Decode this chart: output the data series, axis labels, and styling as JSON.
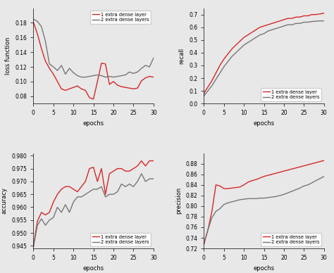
{
  "red_color": "#d62728",
  "gray_color": "#777777",
  "background": "#e8e8e8",
  "legend1_label": "1 extra dense layer",
  "legend2_label": "2 extra dense layers",
  "epochs": [
    0,
    1,
    2,
    3,
    4,
    5,
    6,
    7,
    8,
    9,
    10,
    11,
    12,
    13,
    14,
    15,
    16,
    17,
    18,
    19,
    20,
    21,
    22,
    23,
    24,
    25,
    26,
    27,
    28,
    29,
    30
  ],
  "loss_red": [
    0.181,
    0.165,
    0.145,
    0.128,
    0.118,
    0.11,
    0.1,
    0.09,
    0.088,
    0.09,
    0.092,
    0.094,
    0.09,
    0.088,
    0.078,
    0.076,
    0.1,
    0.125,
    0.124,
    0.096,
    0.1,
    0.095,
    0.093,
    0.092,
    0.091,
    0.09,
    0.091,
    0.101,
    0.105,
    0.107,
    0.106
  ],
  "loss_gray": [
    0.185,
    0.182,
    0.175,
    0.155,
    0.124,
    0.12,
    0.115,
    0.122,
    0.11,
    0.118,
    0.112,
    0.108,
    0.106,
    0.106,
    0.107,
    0.108,
    0.109,
    0.108,
    0.106,
    0.107,
    0.106,
    0.107,
    0.108,
    0.109,
    0.113,
    0.111,
    0.113,
    0.118,
    0.122,
    0.12,
    0.132
  ],
  "recall_red": [
    0.08,
    0.13,
    0.18,
    0.24,
    0.3,
    0.35,
    0.39,
    0.43,
    0.46,
    0.49,
    0.52,
    0.54,
    0.56,
    0.58,
    0.6,
    0.61,
    0.62,
    0.63,
    0.64,
    0.65,
    0.66,
    0.67,
    0.67,
    0.68,
    0.68,
    0.69,
    0.69,
    0.7,
    0.7,
    0.705,
    0.71
  ],
  "recall_gray": [
    0.06,
    0.1,
    0.14,
    0.19,
    0.24,
    0.29,
    0.33,
    0.37,
    0.4,
    0.43,
    0.46,
    0.48,
    0.5,
    0.52,
    0.54,
    0.55,
    0.57,
    0.58,
    0.59,
    0.6,
    0.61,
    0.62,
    0.62,
    0.63,
    0.63,
    0.64,
    0.64,
    0.645,
    0.648,
    0.65,
    0.65
  ],
  "acc_red": [
    0.945,
    0.9545,
    0.958,
    0.957,
    0.958,
    0.962,
    0.965,
    0.967,
    0.968,
    0.968,
    0.967,
    0.966,
    0.968,
    0.97,
    0.975,
    0.9755,
    0.97,
    0.975,
    0.965,
    0.973,
    0.974,
    0.975,
    0.975,
    0.974,
    0.974,
    0.975,
    0.976,
    0.978,
    0.976,
    0.978,
    0.978
  ],
  "acc_gray": [
    0.9445,
    0.953,
    0.9555,
    0.953,
    0.955,
    0.956,
    0.96,
    0.958,
    0.961,
    0.958,
    0.962,
    0.964,
    0.964,
    0.965,
    0.966,
    0.967,
    0.967,
    0.968,
    0.964,
    0.965,
    0.965,
    0.966,
    0.969,
    0.968,
    0.969,
    0.968,
    0.97,
    0.973,
    0.97,
    0.971,
    0.971
  ],
  "prec_red": [
    0.728,
    0.755,
    0.79,
    0.84,
    0.838,
    0.833,
    0.833,
    0.834,
    0.835,
    0.836,
    0.84,
    0.845,
    0.848,
    0.85,
    0.853,
    0.856,
    0.858,
    0.86,
    0.862,
    0.864,
    0.866,
    0.868,
    0.87,
    0.872,
    0.874,
    0.876,
    0.878,
    0.88,
    0.882,
    0.884,
    0.886
  ],
  "prec_gray": [
    0.73,
    0.755,
    0.778,
    0.79,
    0.795,
    0.803,
    0.806,
    0.808,
    0.81,
    0.812,
    0.813,
    0.814,
    0.814,
    0.814,
    0.815,
    0.815,
    0.816,
    0.817,
    0.818,
    0.82,
    0.822,
    0.825,
    0.828,
    0.831,
    0.834,
    0.838,
    0.84,
    0.844,
    0.848,
    0.852,
    0.856
  ],
  "loss_ylim": [
    0.07,
    0.2
  ],
  "recall_ylim": [
    0.0,
    0.75
  ],
  "acc_ylim": [
    0.944,
    0.981
  ],
  "prec_ylim": [
    0.72,
    0.9
  ],
  "loss_yticks": [
    0.08,
    0.1,
    0.12,
    0.14,
    0.16,
    0.18
  ],
  "recall_yticks": [
    0.0,
    0.1,
    0.2,
    0.3,
    0.4,
    0.5,
    0.6,
    0.7
  ],
  "acc_yticks": [
    0.945,
    0.95,
    0.955,
    0.96,
    0.965,
    0.97,
    0.975,
    0.98
  ],
  "prec_yticks": [
    0.72,
    0.74,
    0.76,
    0.78,
    0.8,
    0.82,
    0.84,
    0.86,
    0.88
  ],
  "xlabel": "epochs",
  "ylabel_loss": "loss function",
  "ylabel_recall": "recall",
  "ylabel_acc": "accuracy",
  "ylabel_prec": "precision"
}
